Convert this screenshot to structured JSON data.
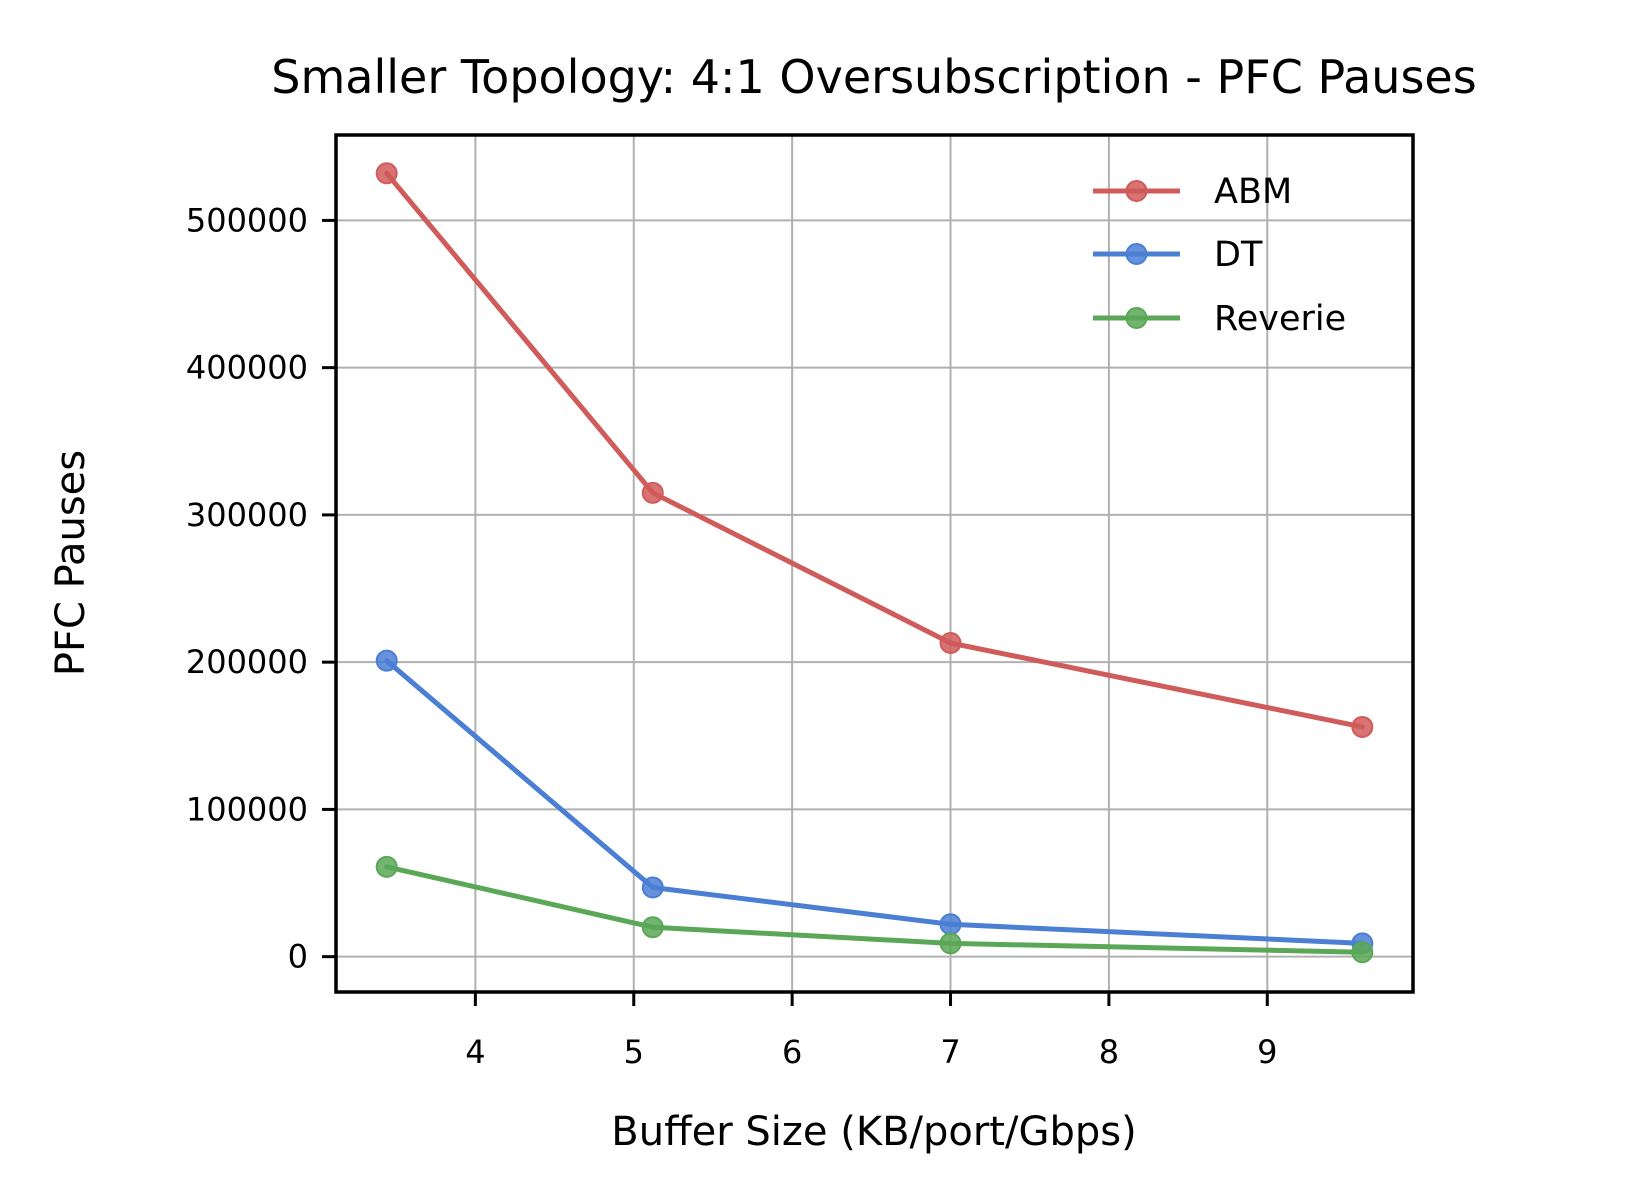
{
  "chart_data": {
    "type": "line",
    "title": "Smaller Topology: 4:1 Oversubscription - PFC Pauses",
    "xlabel": "Buffer Size (KB/port/Gbps)",
    "ylabel": "PFC Pauses",
    "xlim": [
      3.12,
      9.92
    ],
    "ylim": [
      -24000,
      558000
    ],
    "xticks": [
      4,
      5,
      6,
      7,
      8,
      9
    ],
    "yticks": [
      0,
      100000,
      200000,
      300000,
      400000,
      500000
    ],
    "grid": true,
    "legend_position": "top-right",
    "series": [
      {
        "name": "ABM",
        "color": "#d05b5b",
        "x": [
          3.44,
          5.12,
          7.0,
          9.6
        ],
        "y": [
          532000,
          315000,
          213000,
          156000
        ]
      },
      {
        "name": "DT",
        "color": "#4a7fd4",
        "x": [
          3.44,
          5.12,
          7.0,
          9.6
        ],
        "y": [
          201000,
          47000,
          22000,
          9000
        ]
      },
      {
        "name": "Reverie",
        "color": "#5aa857",
        "x": [
          3.44,
          5.12,
          7.0,
          9.6
        ],
        "y": [
          61000,
          20000,
          9000,
          3000
        ]
      }
    ]
  }
}
